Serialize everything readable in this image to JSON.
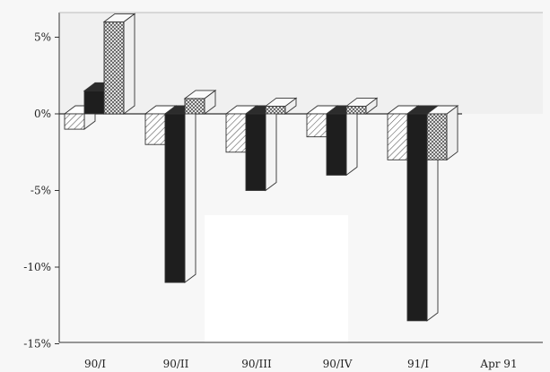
{
  "chart_data": {
    "type": "bar",
    "style": "3d-clustered",
    "categories": [
      "90/I",
      "90/II",
      "90/III",
      "90/IV",
      "91/I",
      "Apr 91"
    ],
    "series": [
      {
        "pattern": "hatched",
        "values": [
          -1.0,
          -2.0,
          -2.5,
          -1.5,
          -3.0,
          null
        ]
      },
      {
        "pattern": "solid-black",
        "values": [
          1.5,
          -11.0,
          -5.0,
          -4.0,
          -13.5,
          null
        ]
      },
      {
        "pattern": "crosshatched",
        "values": [
          6.0,
          1.0,
          0.5,
          0.5,
          -3.0,
          null
        ]
      }
    ],
    "yticks": [
      "5%",
      "0%",
      "-5%",
      "-10%",
      "-15%"
    ],
    "ytick_values": [
      5,
      0,
      -5,
      -10,
      -15
    ],
    "ylim": [
      -15,
      6.5
    ],
    "grid": false,
    "legend": "none",
    "colors": {
      "hatched_fill": "#ffffff",
      "hatched_line": "#444444",
      "solid": "#1e1e1e",
      "solid_top": "#2c2c2c",
      "solid_side": "#f4f4f4",
      "cross_fill": "#ffffff",
      "cross_line": "#555555",
      "background": "#f7f7f7"
    }
  }
}
